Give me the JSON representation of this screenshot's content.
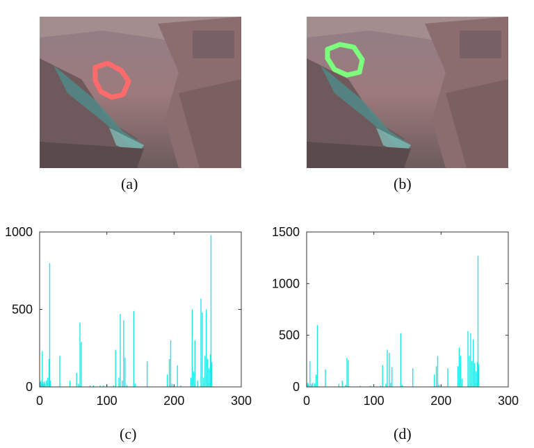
{
  "panels": {
    "a": {
      "caption": "(a)",
      "contour_color": "#ff6b6b"
    },
    "b": {
      "caption": "(b)",
      "contour_color": "#7dff7d"
    },
    "c": {
      "caption": "(c)"
    },
    "d": {
      "caption": "(d)"
    }
  },
  "chart_data": [
    {
      "panel": "c",
      "type": "bar",
      "color": "#22e6e6",
      "xlim": [
        0,
        300
      ],
      "ylim": [
        0,
        1000
      ],
      "xticks": [
        0,
        100,
        200,
        300
      ],
      "yticks": [
        0,
        500,
        1000
      ],
      "x": [
        1,
        2,
        3,
        4,
        5,
        6,
        7,
        8,
        10,
        12,
        14,
        15,
        16,
        30,
        45,
        55,
        58,
        60,
        62,
        75,
        80,
        90,
        95,
        100,
        110,
        113,
        118,
        120,
        123,
        125,
        127,
        130,
        140,
        142,
        160,
        190,
        193,
        195,
        197,
        200,
        205,
        210,
        225,
        227,
        229,
        231,
        235,
        240,
        242,
        244,
        246,
        248,
        250,
        252,
        254,
        255,
        256
      ],
      "values": [
        30,
        40,
        20,
        230,
        30,
        15,
        35,
        20,
        40,
        60,
        180,
        800,
        40,
        200,
        40,
        90,
        20,
        415,
        290,
        10,
        10,
        10,
        10,
        15,
        10,
        240,
        60,
        470,
        40,
        430,
        190,
        10,
        490,
        20,
        165,
        80,
        180,
        300,
        20,
        10,
        140,
        10,
        60,
        500,
        100,
        300,
        40,
        570,
        480,
        60,
        200,
        500,
        180,
        120,
        210,
        980,
        160
      ]
    },
    {
      "panel": "d",
      "type": "bar",
      "color": "#22e6e6",
      "xlim": [
        0,
        300
      ],
      "ylim": [
        0,
        1500
      ],
      "xticks": [
        0,
        100,
        200,
        300
      ],
      "yticks": [
        0,
        500,
        1000,
        1500
      ],
      "x": [
        1,
        2,
        3,
        5,
        7,
        9,
        12,
        14,
        16,
        28,
        48,
        53,
        58,
        60,
        62,
        80,
        95,
        110,
        113,
        118,
        120,
        123,
        125,
        127,
        140,
        142,
        158,
        190,
        193,
        195,
        197,
        200,
        210,
        225,
        227,
        229,
        231,
        240,
        242,
        244,
        246,
        248,
        250,
        252,
        254,
        255,
        256
      ],
      "values": [
        30,
        40,
        20,
        250,
        30,
        40,
        30,
        120,
        600,
        170,
        30,
        60,
        20,
        280,
        260,
        10,
        10,
        10,
        210,
        30,
        360,
        330,
        40,
        190,
        520,
        20,
        180,
        120,
        200,
        300,
        20,
        10,
        180,
        200,
        380,
        300,
        80,
        540,
        300,
        520,
        250,
        460,
        230,
        150,
        240,
        1270,
        220
      ]
    }
  ]
}
